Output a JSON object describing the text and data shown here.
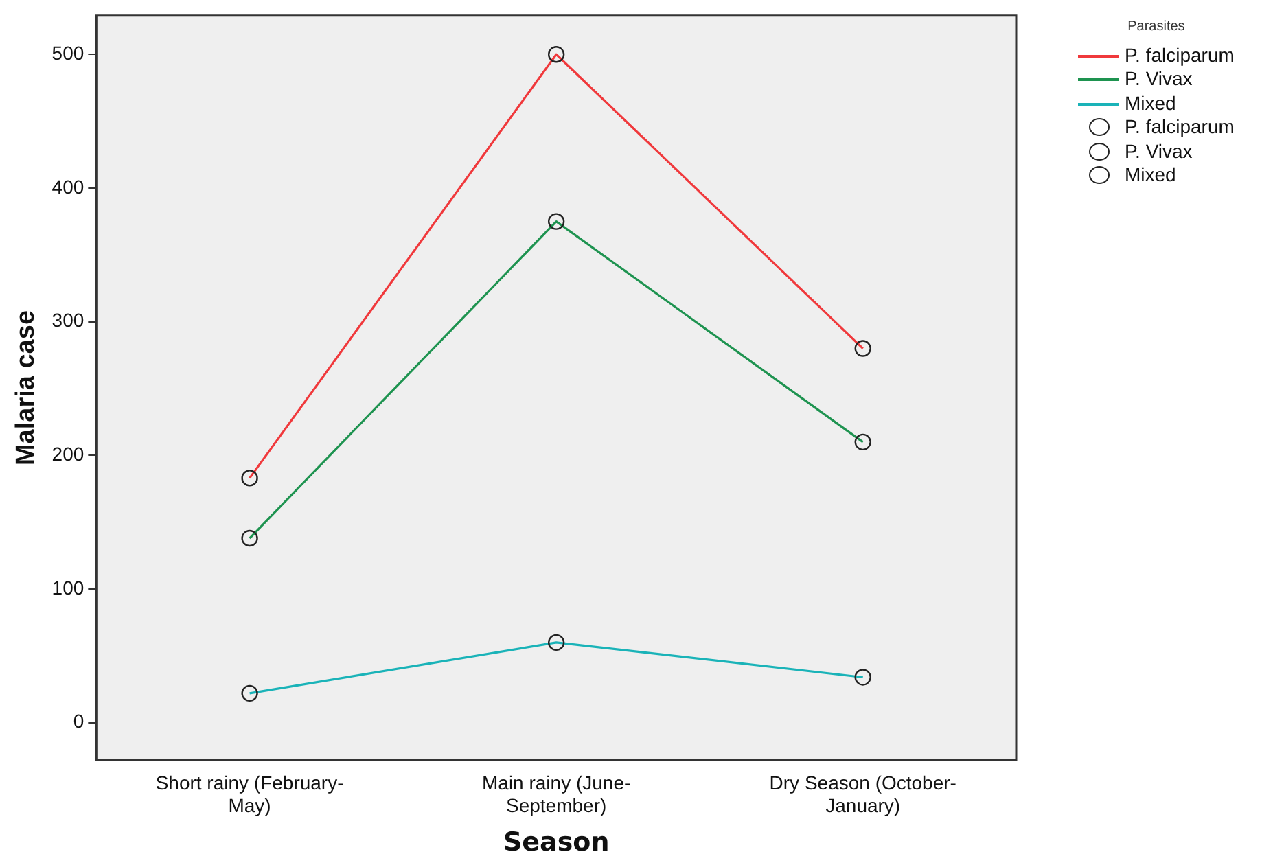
{
  "chart_data": {
    "type": "line",
    "xlabel": "Season",
    "ylabel": "Malaria case",
    "legend_title": "Parasites",
    "legend": "top right",
    "marker": "circle",
    "grid": false,
    "categories": [
      "Short rainy (February-May)",
      "Main rainy (June-September)",
      "Dry Season (October-January)"
    ],
    "ylim": [
      -28,
      529
    ],
    "yticks": [
      0,
      100,
      200,
      300,
      400,
      500
    ],
    "series": [
      {
        "name": "P. falciparum",
        "color": "#f0393c",
        "values": [
          183,
          500,
          280
        ]
      },
      {
        "name": "P. Vivax",
        "color": "#1e9350",
        "values": [
          138,
          375,
          210
        ]
      },
      {
        "name": "Mixed",
        "color": "#1ab3b8",
        "values": [
          22,
          60,
          34
        ]
      }
    ]
  }
}
